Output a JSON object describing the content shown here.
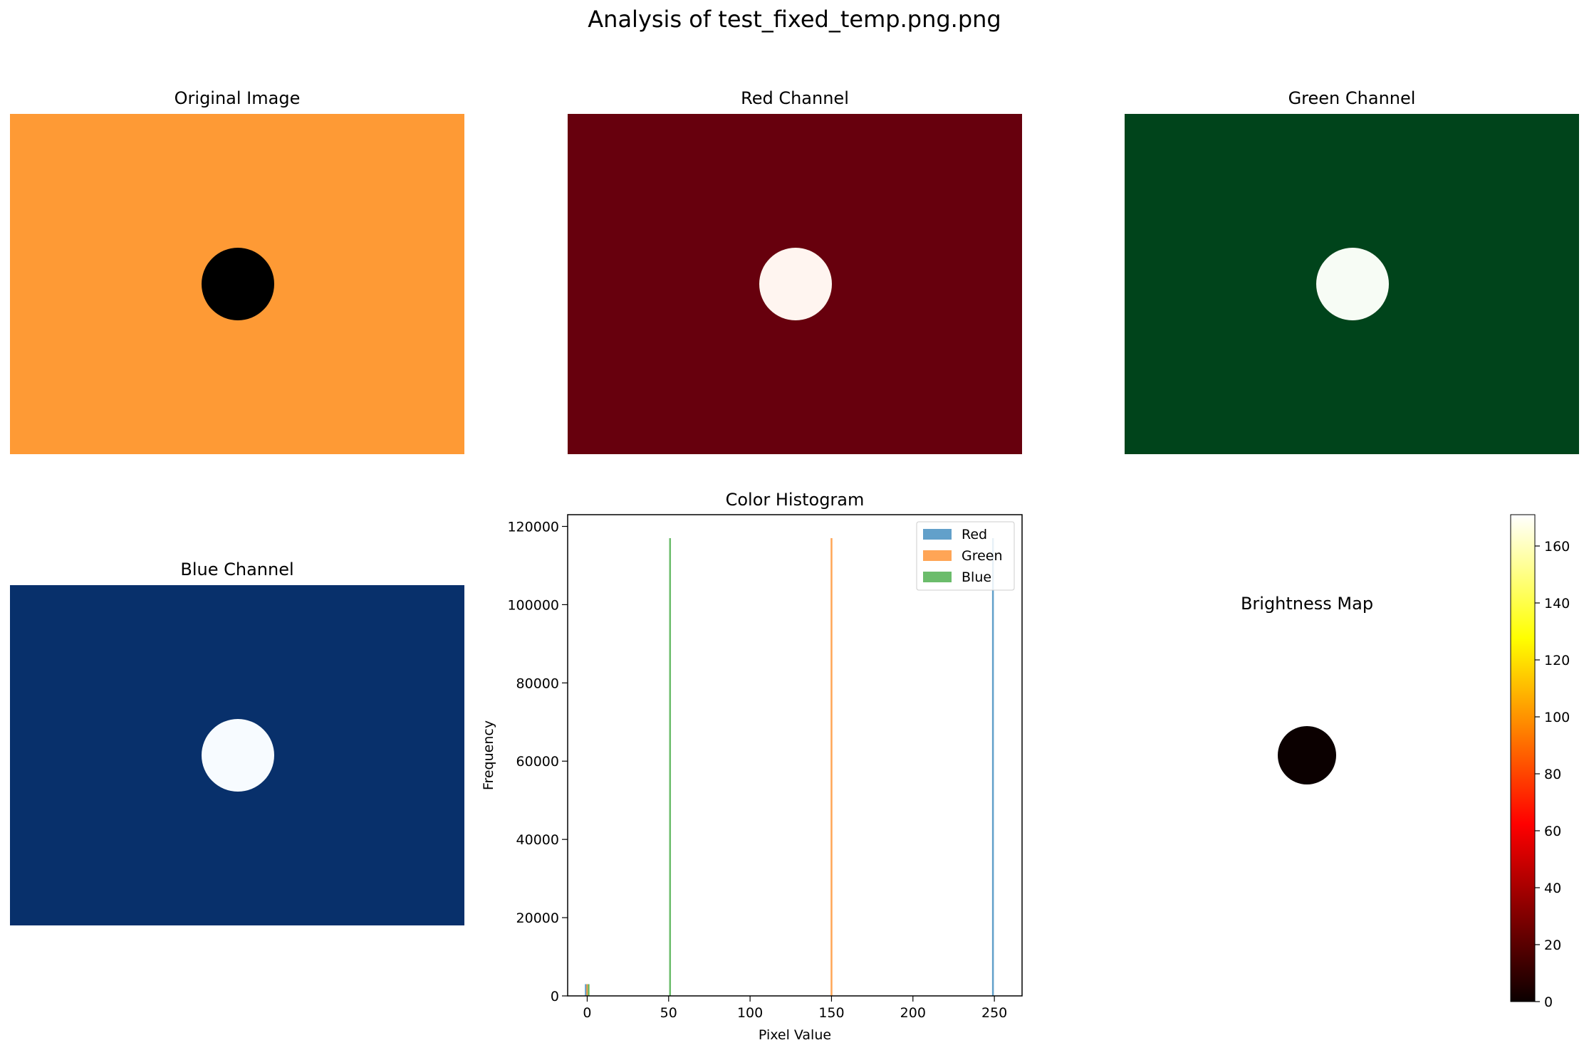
{
  "figure": {
    "title": "Analysis of test_fixed_temp.png.png"
  },
  "panels": {
    "original": {
      "title": "Original Image",
      "background": "#fe9a35",
      "circle": "#000000"
    },
    "red": {
      "title": "Red Channel",
      "background": "#67000d",
      "circle": "#fff5f0"
    },
    "green": {
      "title": "Green Channel",
      "background": "#00441b",
      "circle": "#f7fcf5"
    },
    "blue": {
      "title": "Blue Channel",
      "background": "#08306b",
      "circle": "#f7fbff"
    },
    "brightness": {
      "title": "Brightness Map",
      "background": "#ffffff",
      "circle": "#0b0000"
    }
  },
  "chart_data": [
    {
      "type": "bar",
      "title": "Color Histogram",
      "xlabel": "Pixel Value",
      "ylabel": "Frequency",
      "xlim": [
        -12,
        267
      ],
      "ylim": [
        0,
        123000
      ],
      "xticks": [
        0,
        50,
        100,
        150,
        200,
        250
      ],
      "yticks": [
        0,
        20000,
        40000,
        60000,
        80000,
        100000,
        120000
      ],
      "legend_position": "top-right",
      "series": [
        {
          "name": "Red",
          "color": "#1f77b4",
          "x": [
            0,
            250
          ],
          "values": [
            3000,
            117000
          ]
        },
        {
          "name": "Green",
          "color": "#ff7f0e",
          "x": [
            0,
            150
          ],
          "values": [
            3000,
            117000
          ]
        },
        {
          "name": "Blue",
          "color": "#2ca02c",
          "x": [
            0,
            50
          ],
          "values": [
            3000,
            117000
          ]
        }
      ]
    },
    {
      "type": "heatmap",
      "title": "Brightness Map",
      "colormap": "hot",
      "colorbar_range": [
        0,
        171
      ],
      "colorbar_ticks": [
        0,
        20,
        40,
        60,
        80,
        100,
        120,
        140,
        160
      ]
    }
  ]
}
